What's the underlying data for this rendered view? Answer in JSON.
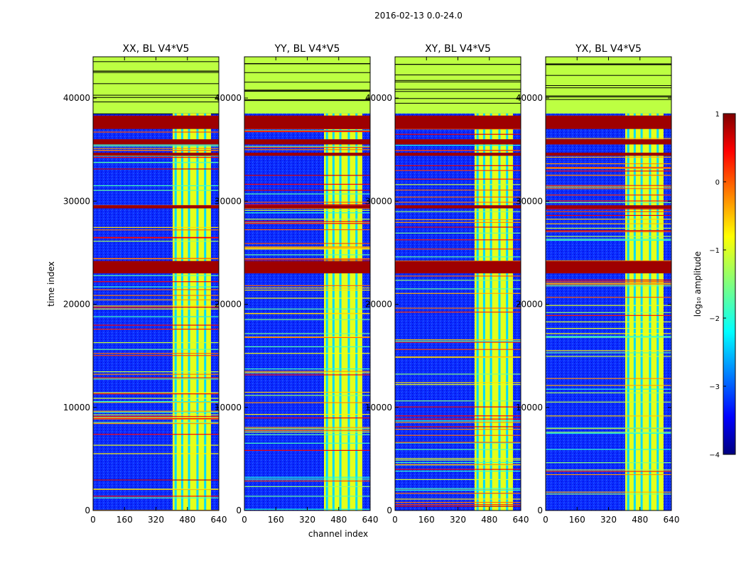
{
  "figure": {
    "suptitle": "2016-02-13 0.0-24.0",
    "xlabel": "channel index",
    "ylabel": "time index"
  },
  "chart_data": {
    "type": "heatmap",
    "suptitle": "2016-02-13 0.0-24.0",
    "xlabel": "channel index",
    "ylabel": "time index",
    "xlim": [
      0,
      640
    ],
    "ylim": [
      0,
      44000
    ],
    "xticks": [
      0,
      160,
      320,
      480,
      640
    ],
    "yticks": [
      0,
      10000,
      20000,
      30000,
      40000
    ],
    "panels": [
      {
        "title": "XX, BL V4*V5",
        "band": [
          405,
          600
        ],
        "show_yticklabels": true
      },
      {
        "title": "YY, BL V4*V5",
        "band": [
          405,
          600
        ],
        "show_yticklabels": true
      },
      {
        "title": "XY, BL V4*V5",
        "band": [
          405,
          600
        ],
        "show_yticklabels": true
      },
      {
        "title": "YX, BL V4*V5",
        "band": [
          405,
          600
        ],
        "show_yticklabels": true
      }
    ],
    "flagged_region": {
      "time_from": 38500,
      "time_to": 44000,
      "value": -1.2
    },
    "strong_rfi_rows": [
      [
        37000,
        38300
      ],
      [
        35500,
        36000
      ],
      [
        34400,
        34700
      ],
      [
        23000,
        24200
      ],
      [
        29300,
        29600
      ]
    ],
    "colorbar": {
      "label": "log₁₀ amplitude",
      "min": -4,
      "max": 1,
      "ticks": [
        "1",
        "0",
        "−1",
        "−2",
        "−3",
        "−4"
      ],
      "colormap": "jet"
    }
  }
}
